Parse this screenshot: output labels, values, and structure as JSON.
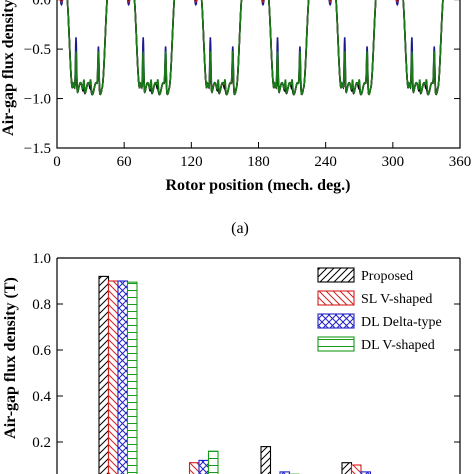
{
  "figure": {
    "panel_a_label": "(a)"
  },
  "chart_data": [
    {
      "type": "line",
      "xlabel": "Rotor position (mech. deg.)",
      "ylabel": "Air-gap flux density (T)",
      "xlim": [
        0,
        360
      ],
      "ylim": [
        -1.5,
        0.3
      ],
      "x_ticks": [
        0,
        60,
        120,
        180,
        240,
        300,
        360
      ],
      "y_ticks": [
        -1.5,
        -1.0,
        -0.5,
        0.0
      ],
      "y_tick_labels": [
        "−1.5",
        "−1.0",
        "−0.5",
        "0.0"
      ],
      "pole_period_deg": 60,
      "flat_top_value": 0.1,
      "trough_value": -0.9,
      "series": [
        {
          "color": "#1b1b8f",
          "slot_dip_depth": 0.15,
          "trough_spikes": [
            -0.35,
            -0.9,
            -0.9,
            -0.45
          ]
        },
        {
          "color": "#d42020",
          "slot_dip_depth": 0.12,
          "trough_spikes": [
            -0.55,
            -0.85,
            -0.85,
            -0.55
          ]
        },
        {
          "color": "#000000",
          "slot_dip_depth": 0.1,
          "trough_spikes": [
            -0.6,
            -0.9,
            -0.9,
            -0.6
          ]
        },
        {
          "color": "#1a7a1a",
          "slot_dip_depth": 0.08,
          "trough_spikes": [
            -0.5,
            -0.8,
            -0.8,
            -0.5
          ]
        }
      ]
    },
    {
      "type": "bar",
      "ylabel": "Air-gap flux density (T)",
      "ylim": [
        0,
        1.0
      ],
      "y_ticks": [
        0.2,
        0.4,
        0.6,
        0.8,
        1.0
      ],
      "y_tick_labels": [
        "0.2",
        "0.4",
        "0.6",
        "0.8",
        "1.0"
      ],
      "legend_position": "top-right",
      "series": [
        {
          "name": "Proposed",
          "color": "#000000",
          "pattern": "diagonal",
          "values": [
            0.92,
            0.04,
            0.18,
            0.11
          ]
        },
        {
          "name": "SL V-shaped",
          "color": "#d42020",
          "pattern": "back-diagonal",
          "values": [
            0.9,
            0.11,
            0.05,
            0.1
          ]
        },
        {
          "name": "DL Delta-type",
          "color": "#2020c8",
          "pattern": "cross",
          "values": [
            0.9,
            0.12,
            0.07,
            0.07
          ]
        },
        {
          "name": "DL V-shaped",
          "color": "#1a9a1a",
          "pattern": "horizontal",
          "values": [
            0.895,
            0.16,
            0.06,
            0.05
          ]
        }
      ]
    }
  ]
}
